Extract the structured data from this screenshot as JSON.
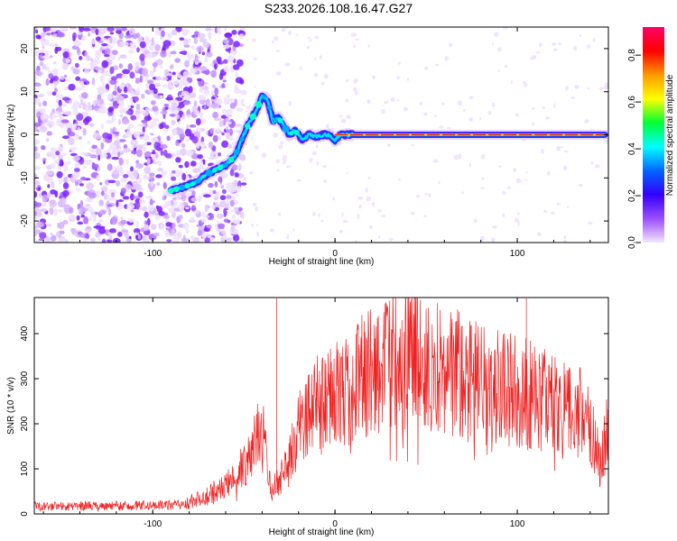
{
  "title": "S233.2026.108.16.47.G27",
  "chart_data": [
    {
      "type": "heatmap",
      "xlabel": "Height of straight line (km)",
      "ylabel": "Frequency (Hz)",
      "xlim": [
        -165,
        150
      ],
      "ylim": [
        -25,
        25
      ],
      "x_ticks": [
        "-100",
        "0",
        "100"
      ],
      "y_ticks": [
        "20",
        "10",
        "0",
        "-10",
        "-20"
      ],
      "colorbar": {
        "label": "Normalized spectral amplitude",
        "range": [
          0,
          0.92
        ],
        "ticks": [
          "0.0",
          "0.2",
          "0.4",
          "0.6",
          "0.8"
        ],
        "colors": [
          "#f2e6ff",
          "#9b4dff",
          "#3300ff",
          "#0066ff",
          "#00ffff",
          "#00ff33",
          "#ffff00",
          "#ff9900",
          "#ff0000",
          "#ff0066"
        ]
      },
      "ridge": {
        "x": [
          -90,
          -82,
          -76,
          -70,
          -65,
          -60,
          -55,
          -51,
          -48,
          -44,
          -40,
          -37,
          -34,
          -31,
          -28,
          -25,
          -22,
          -18,
          -14,
          -10,
          -6,
          -3,
          0,
          3,
          8,
          20,
          50,
          100,
          148
        ],
        "y": [
          -13,
          -12,
          -11,
          -9,
          -8,
          -7,
          -5,
          -1,
          2,
          5,
          9,
          8,
          3,
          4,
          2,
          0,
          1,
          -1,
          0,
          -0.5,
          0,
          0,
          -1.5,
          0,
          0,
          0,
          0,
          0,
          0
        ]
      }
    },
    {
      "type": "line",
      "xlabel": "Height of straight line (km)",
      "ylabel": "SNR (10 * v/v)",
      "xlim": [
        -165,
        150
      ],
      "ylim": [
        0,
        480
      ],
      "x_ticks": [
        "-100",
        "0",
        "100"
      ],
      "y_ticks": [
        "0",
        "100",
        "200",
        "300",
        "400"
      ],
      "color": "#ee2222",
      "envelope": {
        "x": [
          -165,
          -100,
          -85,
          -70,
          -55,
          -45,
          -40,
          -35,
          -30,
          -20,
          -10,
          0,
          10,
          20,
          30,
          40,
          50,
          60,
          70,
          80,
          90,
          100,
          110,
          120,
          130,
          140,
          145,
          150
        ],
        "y": [
          18,
          20,
          22,
          40,
          80,
          150,
          200,
          60,
          80,
          200,
          250,
          270,
          300,
          330,
          360,
          370,
          350,
          330,
          320,
          300,
          300,
          290,
          270,
          260,
          250,
          210,
          120,
          200
        ]
      },
      "spikes": [
        {
          "x": -32,
          "y": 478
        },
        {
          "x": 105,
          "y": 478
        }
      ]
    }
  ]
}
